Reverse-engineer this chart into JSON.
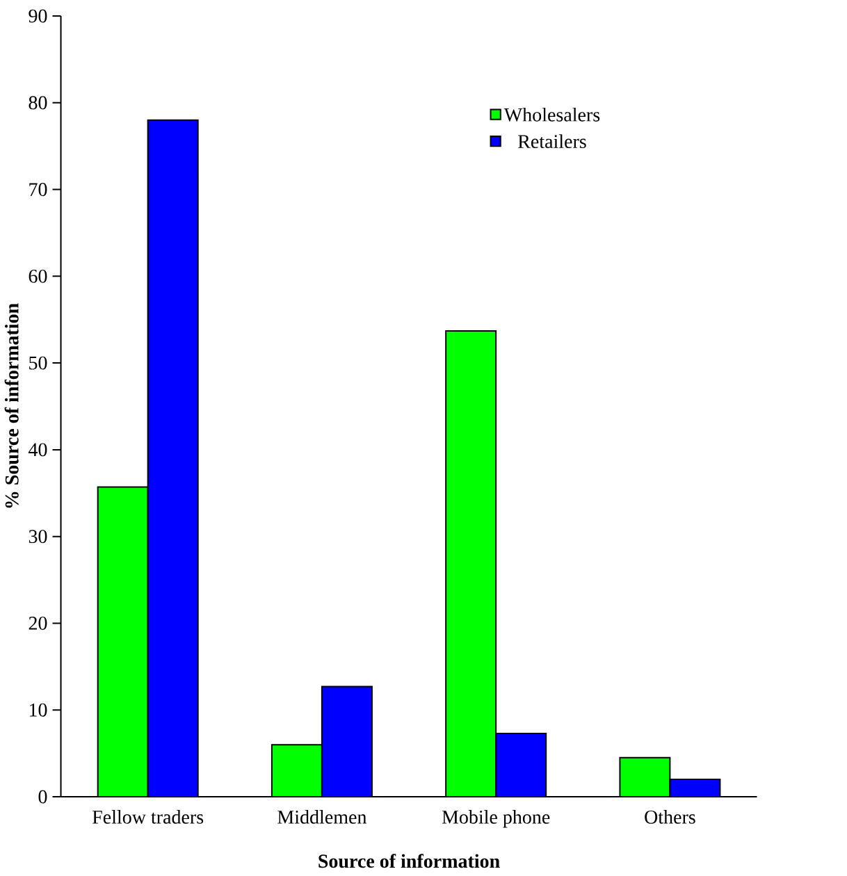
{
  "chart_data": {
    "type": "bar",
    "xlabel": "Source of information",
    "ylabel": "% Source of information",
    "categories": [
      "Fellow traders",
      "Middlemen",
      "Mobile phone",
      "Others"
    ],
    "series": [
      {
        "name": "Wholesalers",
        "color": "#00ff00",
        "values": [
          35.7,
          6.0,
          53.7,
          4.5
        ]
      },
      {
        "name": "Retailers",
        "color": "#0000ff",
        "values": [
          78.0,
          12.7,
          7.3,
          2.0
        ]
      }
    ],
    "ylim": [
      0,
      90
    ],
    "yticks": [
      0,
      10,
      20,
      30,
      40,
      50,
      60,
      70,
      80,
      90
    ],
    "grid": false,
    "legend": "top right"
  }
}
